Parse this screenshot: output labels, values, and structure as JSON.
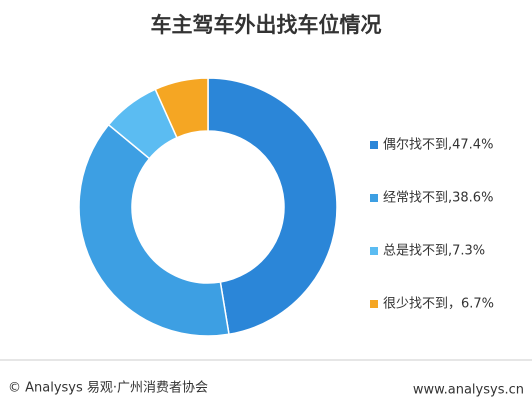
{
  "chart_data": {
    "type": "donut",
    "title": "车主驾车外出找车位情况",
    "categories": [
      "偶尔找不到,47.4%",
      "经常找不到,38.6%",
      "总是找不到,7.3%",
      "很少找不到，6.7%"
    ],
    "values": [
      47.4,
      38.6,
      7.3,
      6.7
    ],
    "colors": [
      "#2b86d8",
      "#3d9fe3",
      "#5bbcf2",
      "#f5a623"
    ]
  },
  "footer": {
    "left": "© Analysys 易观·广州消费者协会",
    "right": "www.analysys.cn"
  }
}
